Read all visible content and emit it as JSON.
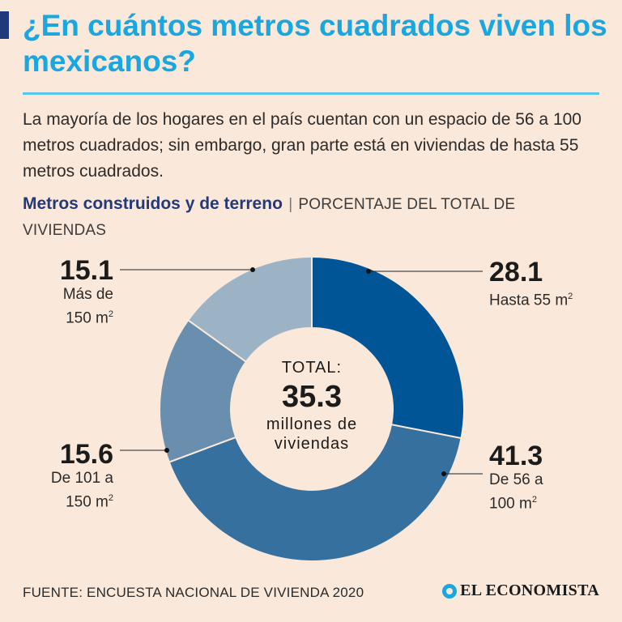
{
  "header": {
    "title": "¿En cuántos metros cuadrados viven los mexicanos?",
    "subtitle": "La mayoría de los hogares en el país cuentan con un espacio de 56 a 100 metros cuadrados; sin embargo, gran parte está en viviendas de hasta 55 metros cuadrados."
  },
  "chart_heading": {
    "bold": "Metros construidos y de terreno",
    "separator": "|",
    "unit": "PORCENTAJE DEL TOTAL DE VIVIENDAS"
  },
  "chart_data": {
    "type": "pie",
    "title": "Metros construidos y de terreno",
    "unit": "PORCENTAJE DEL TOTAL DE VIVIENDAS",
    "slices": [
      {
        "label": "Hasta 55 m²",
        "value": 28.1,
        "color": "#005596"
      },
      {
        "label": "De 56 a 100 m²",
        "value": 41.3,
        "color": "#35709e"
      },
      {
        "label": "De 101 a 150 m²",
        "value": 15.6,
        "color": "#6a8fae"
      },
      {
        "label": "Más de 150 m²",
        "value": 15.1,
        "color": "#9cb2c5"
      }
    ],
    "center": {
      "top": "TOTAL:",
      "value": "35.3",
      "line1": "millones de",
      "line2": "viviendas"
    }
  },
  "labels": {
    "hasta55": {
      "value": "28.1",
      "text": "Hasta 55 m",
      "sup": "2"
    },
    "de56": {
      "value": "41.3",
      "line1": "De 56 a",
      "line2": "100 m",
      "sup": "2"
    },
    "de101": {
      "value": "15.6",
      "line1": "De 101 a",
      "line2": "150 m",
      "sup": "2"
    },
    "mas150": {
      "value": "15.1",
      "line1": "Más de",
      "line2": "150 m",
      "sup": "2"
    }
  },
  "footer": {
    "source": "FUENTE: ENCUESTA NACIONAL DE VIVIENDA 2020",
    "logo": "EL ECONOMISTA"
  },
  "colors": {
    "background": "#fae8da",
    "title": "#1aa6e0",
    "heading": "#24397a"
  }
}
